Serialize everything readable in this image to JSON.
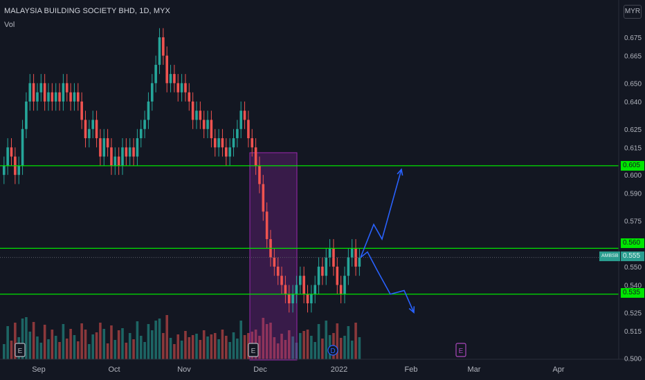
{
  "header": {
    "title": "MALAYSIA BUILDING SOCIETY BHD, 1D, MYX",
    "volume_label": "Vol",
    "currency": "MYR"
  },
  "price_tags": {
    "res_high": "0.605",
    "res_mid": "0.560",
    "last": "0.555",
    "last_left": "AMBSB",
    "support": "0.535"
  },
  "colors": {
    "background": "#131722",
    "up": "#26a69a",
    "down": "#ef5350",
    "level_line": "#00e600",
    "arrow": "#2962ff",
    "box": "#9c27b0"
  },
  "markers": [
    "E",
    "E",
    "D",
    "E"
  ],
  "chart_data": {
    "type": "candlestick",
    "title": "MALAYSIA BUILDING SOCIETY BHD, 1D, MYX",
    "y_ticks": [
      "0.675",
      "0.665",
      "0.650",
      "0.640",
      "0.625",
      "0.615",
      "0.600",
      "0.590",
      "0.575",
      "0.550",
      "0.540",
      "0.525",
      "0.515",
      "0.500"
    ],
    "x_ticks": [
      "Sep",
      "Oct",
      "Nov",
      "Dec",
      "2022",
      "Feb",
      "Mar",
      "Apr"
    ],
    "ylim": [
      0.499,
      0.683
    ],
    "horizontal_levels": [
      0.605,
      0.56,
      0.535
    ],
    "last_price": 0.555,
    "close": [
      0.605,
      0.615,
      0.61,
      0.6,
      0.605,
      0.625,
      0.64,
      0.65,
      0.64,
      0.645,
      0.65,
      0.64,
      0.645,
      0.64,
      0.645,
      0.64,
      0.65,
      0.645,
      0.64,
      0.645,
      0.64,
      0.63,
      0.62,
      0.625,
      0.63,
      0.62,
      0.61,
      0.62,
      0.615,
      0.605,
      0.61,
      0.605,
      0.615,
      0.61,
      0.615,
      0.61,
      0.62,
      0.625,
      0.63,
      0.64,
      0.65,
      0.66,
      0.675,
      0.665,
      0.65,
      0.655,
      0.65,
      0.645,
      0.65,
      0.645,
      0.64,
      0.63,
      0.635,
      0.63,
      0.625,
      0.63,
      0.62,
      0.615,
      0.62,
      0.615,
      0.61,
      0.615,
      0.62,
      0.625,
      0.635,
      0.63,
      0.62,
      0.615,
      0.605,
      0.595,
      0.58,
      0.565,
      0.555,
      0.55,
      0.545,
      0.54,
      0.535,
      0.53,
      0.535,
      0.54,
      0.545,
      0.535,
      0.53,
      0.535,
      0.54,
      0.55,
      0.545,
      0.555,
      0.56,
      0.55,
      0.54,
      0.535,
      0.545,
      0.555,
      0.56,
      0.55,
      0.555
    ],
    "arrows": [
      {
        "label": "bullish",
        "points": [
          [
            0.555
          ],
          [
            0.575
          ],
          [
            0.565
          ],
          [
            0.603
          ]
        ]
      },
      {
        "label": "bearish",
        "points": [
          [
            0.555
          ],
          [
            0.558
          ],
          [
            0.545
          ],
          [
            0.535
          ],
          [
            0.525
          ]
        ]
      }
    ],
    "grid": false,
    "legend": "none"
  }
}
